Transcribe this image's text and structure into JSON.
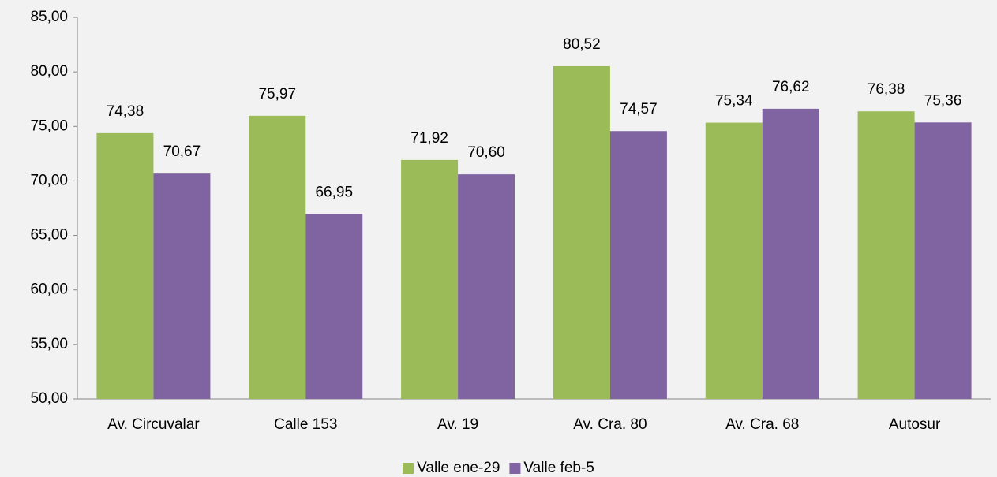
{
  "chart_data": {
    "type": "bar",
    "categories": [
      "Av. Circuvalar",
      "Calle 153",
      "Av. 19",
      "Av. Cra. 80",
      "Av. Cra. 68",
      "Autosur"
    ],
    "series": [
      {
        "name": "Valle ene-29",
        "color": "#9bbb59",
        "values": [
          74.38,
          75.97,
          71.92,
          80.52,
          75.34,
          76.38
        ],
        "value_labels": [
          "74,38",
          "75,97",
          "71,92",
          "80,52",
          "75,34",
          "76,38"
        ]
      },
      {
        "name": "Valle feb-5",
        "color": "#8064a2",
        "values": [
          70.67,
          66.95,
          70.6,
          74.57,
          76.62,
          75.36
        ],
        "value_labels": [
          "70,67",
          "66,95",
          "70,60",
          "74,57",
          "76,62",
          "75,36"
        ]
      }
    ],
    "ylim": [
      50,
      85
    ],
    "yticks": [
      {
        "value": 50,
        "label": "50,00"
      },
      {
        "value": 55,
        "label": "55,00"
      },
      {
        "value": 60,
        "label": "60,00"
      },
      {
        "value": 65,
        "label": "65,00"
      },
      {
        "value": 70,
        "label": "70,00"
      },
      {
        "value": 75,
        "label": "75,00"
      },
      {
        "value": 80,
        "label": "80,00"
      },
      {
        "value": 85,
        "label": "85,00"
      }
    ],
    "grid": false,
    "legend": "bottom"
  }
}
